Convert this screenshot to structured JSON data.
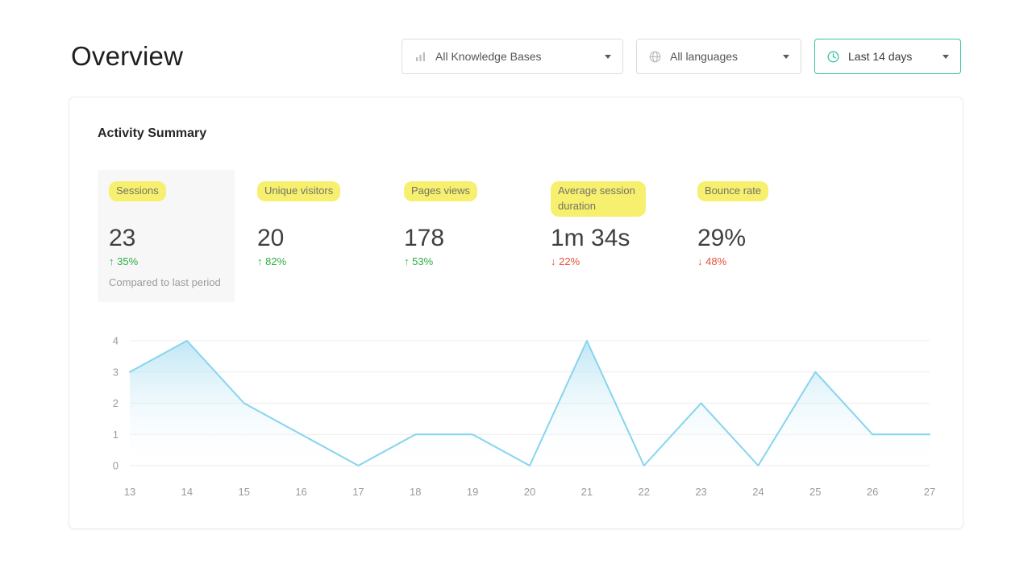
{
  "page": {
    "title": "Overview"
  },
  "filters": {
    "knowledge_bases": {
      "label": "All Knowledge Bases"
    },
    "languages": {
      "label": "All languages"
    },
    "date_range": {
      "label": "Last 14 days"
    }
  },
  "card": {
    "title": "Activity Summary",
    "metrics": [
      {
        "label": "Sessions",
        "value": "23",
        "arrow": "↑",
        "delta": "35%",
        "direction": "up",
        "note": "Compared to last period",
        "selected": true
      },
      {
        "label": "Unique visitors",
        "value": "20",
        "arrow": "↑",
        "delta": "82%",
        "direction": "up"
      },
      {
        "label": "Pages views",
        "value": "178",
        "arrow": "↑",
        "delta": "53%",
        "direction": "up"
      },
      {
        "label": "Average session duration",
        "value": "1m 34s",
        "arrow": "↓",
        "delta": "22%",
        "direction": "down"
      },
      {
        "label": "Bounce rate",
        "value": "29%",
        "arrow": "↓",
        "delta": "48%",
        "direction": "down"
      }
    ]
  },
  "chart_data": {
    "type": "area",
    "title": "",
    "xlabel": "",
    "ylabel": "",
    "x": [
      13,
      14,
      15,
      16,
      17,
      18,
      19,
      20,
      21,
      22,
      23,
      24,
      25,
      26,
      27
    ],
    "values": [
      3,
      4,
      2,
      1,
      0,
      1,
      1,
      0,
      4,
      0,
      2,
      0,
      3,
      1,
      1
    ],
    "ylim": [
      0,
      4
    ],
    "yticks": [
      0,
      1,
      2,
      3,
      4
    ],
    "grid": true,
    "legend": false,
    "line_color": "#86d4ef",
    "fill_top": "#b9e4f4",
    "fill_bottom": "#ffffff"
  },
  "colors": {
    "positive": "#2fad45",
    "negative": "#e8503a",
    "accent": "#35c4a2",
    "highlight": "#f7ef6e"
  }
}
